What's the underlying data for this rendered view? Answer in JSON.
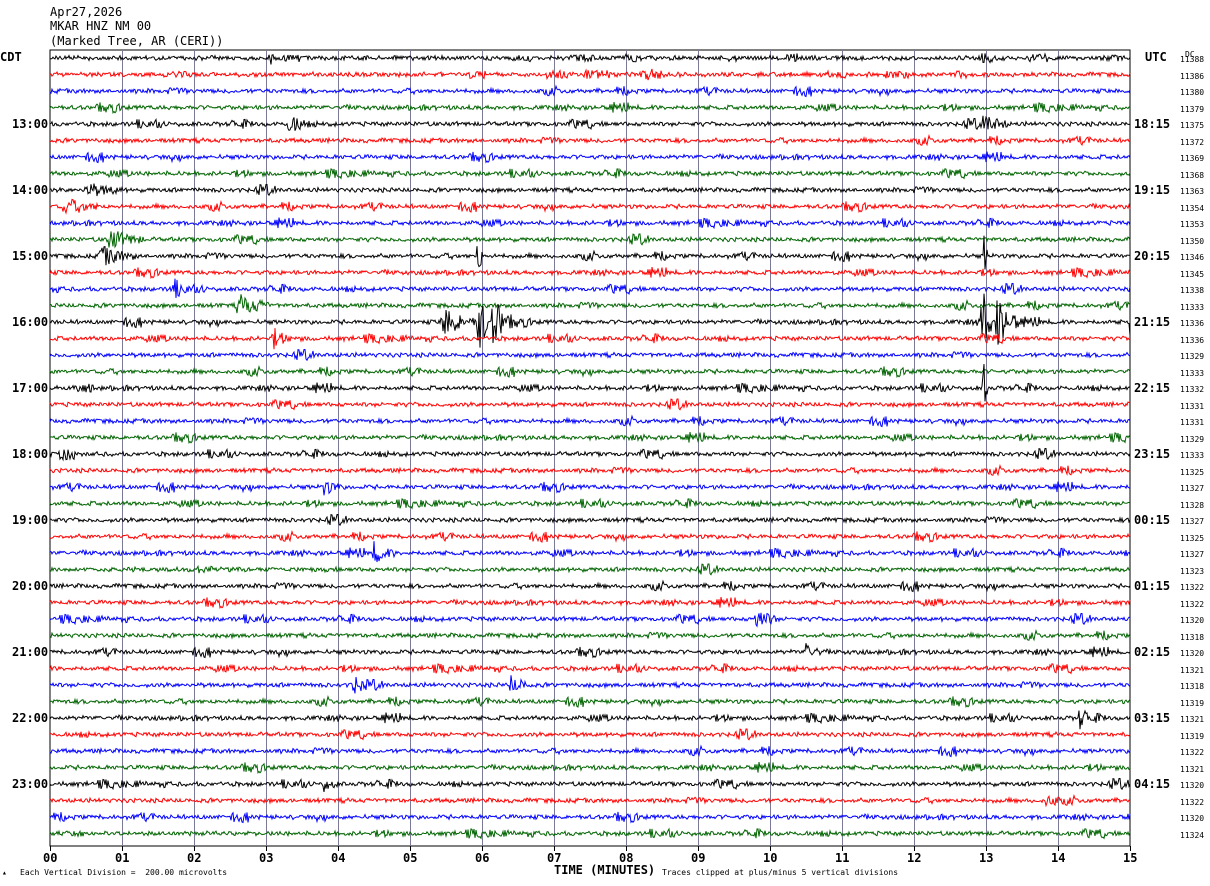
{
  "header": {
    "date": "Apr27,2026",
    "station": "MKAR HNZ NM 00",
    "location": "(Marked Tree, AR (CERI))"
  },
  "left_axis_title": "CDT",
  "right_axis_title": "UTC",
  "dc_title": "DC",
  "x_axis_title": "TIME (MINUTES)",
  "footer": {
    "scale_note": "Each Vertical Division =  200.00 microvolts",
    "clip_note": "Traces clipped at plus/minus 5 vertical divisions",
    "corner_mark": "▴"
  },
  "colors": {
    "cycle": [
      "#000000",
      "#ff0000",
      "#0000ff",
      "#006400"
    ],
    "grid": "#7a7a96",
    "frame": "#000000"
  },
  "chart_data": {
    "type": "helicorder",
    "traces_per_hour": 4,
    "minutes_per_trace": 15,
    "x_ticks": [
      "00",
      "01",
      "02",
      "03",
      "04",
      "05",
      "06",
      "07",
      "08",
      "09",
      "10",
      "11",
      "12",
      "13",
      "14",
      "15"
    ],
    "left_hour_labels": [
      "13:00",
      "14:00",
      "15:00",
      "16:00",
      "17:00",
      "18:00",
      "19:00",
      "20:00",
      "21:00",
      "22:00",
      "23:00"
    ],
    "left_first_trace_index": 4,
    "right_hour_labels": [
      "18:15",
      "19:15",
      "20:15",
      "21:15",
      "22:15",
      "23:15",
      "00:15",
      "01:15",
      "02:15",
      "03:15",
      "04:15"
    ],
    "dc_offsets": [
      "11388",
      "11386",
      "11380",
      "11379",
      "11375",
      "11372",
      "11369",
      "11368",
      "11363",
      "11354",
      "11353",
      "11350",
      "11346",
      "11345",
      "11338",
      "11333",
      "11336",
      "11336",
      "11329",
      "11333",
      "11332",
      "11331",
      "11331",
      "11329",
      "11333",
      "11325",
      "11327",
      "11328",
      "11327",
      "11325",
      "11327",
      "11323",
      "11322",
      "11322",
      "11320",
      "11318",
      "11320",
      "11321",
      "11318",
      "11319",
      "11321",
      "11319",
      "11322",
      "11321",
      "11320",
      "11322",
      "11320",
      "11324"
    ],
    "events": [
      {
        "trace": 0,
        "minute": 3.05,
        "amp": 8,
        "dur": 0.06
      },
      {
        "trace": 4,
        "minute": 3.3,
        "amp": 9,
        "dur": 0.35
      },
      {
        "trace": 4,
        "minute": 12.95,
        "amp": 10,
        "dur": 0.35
      },
      {
        "trace": 8,
        "minute": 0.5,
        "amp": 8,
        "dur": 0.5
      },
      {
        "trace": 9,
        "minute": 0.2,
        "amp": 9,
        "dur": 0.5
      },
      {
        "trace": 11,
        "minute": 0.8,
        "amp": 11,
        "dur": 0.5
      },
      {
        "trace": 12,
        "minute": 0.7,
        "amp": 10,
        "dur": 0.5
      },
      {
        "trace": 12,
        "minute": 5.95,
        "amp": 22,
        "dur": 0.05
      },
      {
        "trace": 12,
        "minute": 12.97,
        "amp": 22,
        "dur": 0.05
      },
      {
        "trace": 14,
        "minute": 1.7,
        "amp": 10,
        "dur": 0.45
      },
      {
        "trace": 15,
        "minute": 2.6,
        "amp": 12,
        "dur": 0.45
      },
      {
        "trace": 16,
        "minute": 5.45,
        "amp": 14,
        "dur": 0.5
      },
      {
        "trace": 16,
        "minute": 5.95,
        "amp": 45,
        "dur": 0.12
      },
      {
        "trace": 16,
        "minute": 6.15,
        "amp": 24,
        "dur": 0.35
      },
      {
        "trace": 16,
        "minute": 12.95,
        "amp": 45,
        "dur": 0.12
      },
      {
        "trace": 16,
        "minute": 13.15,
        "amp": 24,
        "dur": 0.35
      },
      {
        "trace": 16,
        "minute": 15.0,
        "amp": 14,
        "dur": 0.05
      },
      {
        "trace": 17,
        "minute": 3.1,
        "amp": 10,
        "dur": 0.25
      },
      {
        "trace": 20,
        "minute": 12.97,
        "amp": 24,
        "dur": 0.05
      },
      {
        "trace": 26,
        "minute": 3.8,
        "amp": 8,
        "dur": 0.25
      },
      {
        "trace": 30,
        "minute": 4.5,
        "amp": 10,
        "dur": 0.3
      },
      {
        "trace": 34,
        "minute": 9.8,
        "amp": 10,
        "dur": 0.3
      },
      {
        "trace": 36,
        "minute": 10.5,
        "amp": 8,
        "dur": 0.2
      },
      {
        "trace": 38,
        "minute": 4.2,
        "amp": 8,
        "dur": 0.35
      },
      {
        "trace": 38,
        "minute": 6.4,
        "amp": 8,
        "dur": 0.3
      },
      {
        "trace": 40,
        "minute": 14.3,
        "amp": 12,
        "dur": 0.3
      },
      {
        "trace": 44,
        "minute": 3.8,
        "amp": 7,
        "dur": 0.2
      },
      {
        "trace": 45,
        "minute": 13.85,
        "amp": 7,
        "dur": 0.2
      }
    ]
  }
}
